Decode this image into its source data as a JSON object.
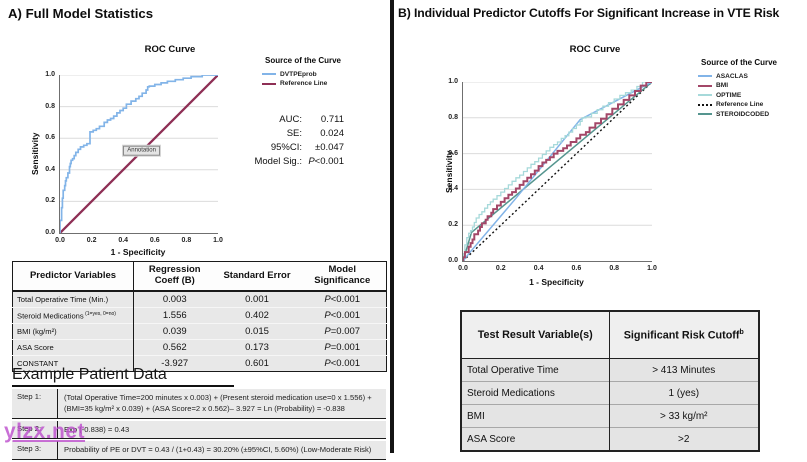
{
  "watermark": "ylzx.net",
  "panelA": {
    "title": "A) Full Model Statistics",
    "stats": [
      {
        "label": "AUC:",
        "value": "0.711"
      },
      {
        "label": "SE:",
        "value": "0.024"
      },
      {
        "label": "95%CI:",
        "value": "±0.047"
      },
      {
        "label": "Model Sig.:",
        "value": "P<0.001"
      }
    ],
    "table": {
      "headers": [
        "Predictor Variables",
        "Regression Coeff (B)",
        "Standard Error",
        "Model Significance"
      ],
      "rows": [
        {
          "label": "Total Operative Time (Min.)",
          "sup": "",
          "b": "0.003",
          "se": "0.001",
          "sig": "P<0.001"
        },
        {
          "label": "Steroid Medications",
          "sup": "(1=yes, 0=no)",
          "b": "1.556",
          "se": "0.402",
          "sig": "P<0.001"
        },
        {
          "label": "BMI (kg/m²)",
          "sup": "",
          "b": "0.039",
          "se": "0.015",
          "sig": "P=0.007"
        },
        {
          "label": "ASA Score",
          "sup": "",
          "b": "0.562",
          "se": "0.173",
          "sig": "P=0.001"
        },
        {
          "label": "CONSTANT",
          "sup": "",
          "b": "-3.927",
          "se": "0.601",
          "sig": "P<0.001"
        }
      ]
    },
    "example": {
      "heading": "Example Patient Data",
      "steps": [
        {
          "label": "Step 1:",
          "text": "(Total Operative Time=200 minutes x 0.003) + (Present steroid medication use=0 x 1.556) + (BMI=35 kg/m² x 0.039) + (ASA Score=2 x 0.562)– 3.927 = Ln (Probability) = -0.838"
        },
        {
          "label": "Step 2:",
          "text": "Exp (-0.838) = 0.43"
        },
        {
          "label": "Step 3:",
          "text": "Probability of PE or DVT = 0.43 / (1+0.43) = 30.20% (±95%CI, 5.60%) (Low-Moderate Risk)"
        }
      ]
    }
  },
  "panelB": {
    "title": "B) Individual Predictor Cutoffs For Significant Increase in VTE Risk",
    "table": {
      "headers": [
        {
          "text": "Test Result Variable(s)",
          "sup": ""
        },
        {
          "text": "Significant Risk Cutoff",
          "sup": "b"
        }
      ],
      "rows": [
        [
          "Total Operative Time",
          "> 413 Minutes"
        ],
        [
          "Steroid Medications",
          "1 (yes)"
        ],
        [
          "BMI",
          "> 33 kg/m²"
        ],
        [
          "ASA Score",
          ">2"
        ]
      ]
    }
  },
  "chart_data": [
    {
      "type": "line",
      "title": "ROC Curve",
      "xlabel": "1 - Specificity",
      "ylabel": "Sensitivity",
      "xlim": [
        0,
        1
      ],
      "ylim": [
        0,
        1
      ],
      "xticks": [
        "0.0",
        "0.2",
        "0.4",
        "0.6",
        "0.8",
        "1.0"
      ],
      "yticks": [
        "1.0",
        "0.8",
        "0.6",
        "0.4",
        "0.2",
        "0.0"
      ],
      "grid": "horizontal-light",
      "legend_title": "Source of the Curve",
      "legend_position": "right",
      "annotation": {
        "label": "Annotation",
        "x": 0.47,
        "y": 0.52
      },
      "draw_order": [
        1,
        0
      ],
      "series": [
        {
          "name": "DVTPEprob",
          "color": "#82b4e8",
          "width": 1.7,
          "stair": true,
          "points": [
            [
              0,
              0
            ],
            [
              0.01,
              0.08
            ],
            [
              0.015,
              0.16
            ],
            [
              0.02,
              0.22
            ],
            [
              0.03,
              0.27
            ],
            [
              0.035,
              0.3
            ],
            [
              0.04,
              0.33
            ],
            [
              0.05,
              0.35
            ],
            [
              0.06,
              0.38
            ],
            [
              0.065,
              0.42
            ],
            [
              0.07,
              0.44
            ],
            [
              0.08,
              0.46
            ],
            [
              0.09,
              0.47
            ],
            [
              0.1,
              0.49
            ],
            [
              0.115,
              0.51
            ],
            [
              0.13,
              0.53
            ],
            [
              0.15,
              0.545
            ],
            [
              0.17,
              0.555
            ],
            [
              0.19,
              0.565
            ],
            [
              0.19,
              0.625
            ],
            [
              0.21,
              0.64
            ],
            [
              0.23,
              0.65
            ],
            [
              0.25,
              0.66
            ],
            [
              0.28,
              0.675
            ],
            [
              0.3,
              0.7
            ],
            [
              0.32,
              0.715
            ],
            [
              0.34,
              0.725
            ],
            [
              0.36,
              0.74
            ],
            [
              0.38,
              0.76
            ],
            [
              0.4,
              0.775
            ],
            [
              0.42,
              0.79
            ],
            [
              0.45,
              0.815
            ],
            [
              0.48,
              0.835
            ],
            [
              0.5,
              0.85
            ],
            [
              0.52,
              0.865
            ],
            [
              0.545,
              0.885
            ],
            [
              0.555,
              0.905
            ],
            [
              0.565,
              0.925
            ],
            [
              0.6,
              0.93
            ],
            [
              0.64,
              0.94
            ],
            [
              0.68,
              0.95
            ],
            [
              0.73,
              0.96
            ],
            [
              0.78,
              0.97
            ],
            [
              0.83,
              0.98
            ],
            [
              0.9,
              0.99
            ],
            [
              1,
              1
            ]
          ]
        },
        {
          "name": "Reference Line",
          "color": "#8e2f55",
          "width": 2.3,
          "points": [
            [
              0,
              0
            ],
            [
              1,
              1
            ]
          ]
        }
      ]
    },
    {
      "type": "line",
      "title": "ROC Curve",
      "xlabel": "1 - Specificity",
      "ylabel": "Sensitivity",
      "xlim": [
        0,
        1
      ],
      "ylim": [
        0,
        1
      ],
      "xticks": [
        "0.0",
        "0.2",
        "0.4",
        "0.6",
        "0.8",
        "1.0"
      ],
      "yticks": [
        "1.0",
        "0.8",
        "0.6",
        "0.4",
        "0.2",
        "0.0"
      ],
      "grid": "horizontal-light",
      "legend_title": "Source of the Curve",
      "legend_position": "right",
      "draw_order": [
        3,
        4,
        0,
        2,
        1
      ],
      "series": [
        {
          "name": "ASACLAS",
          "color": "#82b4e8",
          "width": 1.5,
          "points": [
            [
              0,
              0
            ],
            [
              0.03,
              0.04
            ],
            [
              0.28,
              0.35
            ],
            [
              0.62,
              0.79
            ],
            [
              1,
              1
            ]
          ]
        },
        {
          "name": "BMI",
          "color": "#a34768",
          "width": 2.0,
          "stair": true,
          "points": [
            [
              0,
              0
            ],
            [
              0.01,
              0.02
            ],
            [
              0.03,
              0.05
            ],
            [
              0.04,
              0.08
            ],
            [
              0.05,
              0.1
            ],
            [
              0.06,
              0.12
            ],
            [
              0.08,
              0.15
            ],
            [
              0.09,
              0.17
            ],
            [
              0.1,
              0.19
            ],
            [
              0.12,
              0.21
            ],
            [
              0.13,
              0.23
            ],
            [
              0.15,
              0.25
            ],
            [
              0.16,
              0.27
            ],
            [
              0.18,
              0.29
            ],
            [
              0.2,
              0.31
            ],
            [
              0.22,
              0.33
            ],
            [
              0.24,
              0.35
            ],
            [
              0.26,
              0.37
            ],
            [
              0.28,
              0.385
            ],
            [
              0.3,
              0.405
            ],
            [
              0.32,
              0.425
            ],
            [
              0.34,
              0.445
            ],
            [
              0.36,
              0.465
            ],
            [
              0.38,
              0.485
            ],
            [
              0.4,
              0.505
            ],
            [
              0.42,
              0.53
            ],
            [
              0.44,
              0.55
            ],
            [
              0.46,
              0.565
            ],
            [
              0.48,
              0.58
            ],
            [
              0.5,
              0.6
            ],
            [
              0.53,
              0.615
            ],
            [
              0.55,
              0.63
            ],
            [
              0.57,
              0.645
            ],
            [
              0.6,
              0.665
            ],
            [
              0.62,
              0.685
            ],
            [
              0.65,
              0.705
            ],
            [
              0.67,
              0.72
            ],
            [
              0.7,
              0.745
            ],
            [
              0.73,
              0.77
            ],
            [
              0.76,
              0.795
            ],
            [
              0.79,
              0.82
            ],
            [
              0.82,
              0.85
            ],
            [
              0.85,
              0.875
            ],
            [
              0.88,
              0.9
            ],
            [
              0.91,
              0.925
            ],
            [
              0.94,
              0.95
            ],
            [
              0.97,
              0.98
            ],
            [
              1,
              1
            ]
          ]
        },
        {
          "name": "OPTIME",
          "color": "#a6d9da",
          "width": 1.3,
          "stair": true,
          "points": [
            [
              0,
              0
            ],
            [
              0.01,
              0.04
            ],
            [
              0.02,
              0.09
            ],
            [
              0.03,
              0.13
            ],
            [
              0.04,
              0.155
            ],
            [
              0.05,
              0.17
            ],
            [
              0.06,
              0.19
            ],
            [
              0.07,
              0.215
            ],
            [
              0.085,
              0.24
            ],
            [
              0.1,
              0.26
            ],
            [
              0.115,
              0.275
            ],
            [
              0.13,
              0.295
            ],
            [
              0.145,
              0.315
            ],
            [
              0.16,
              0.33
            ],
            [
              0.18,
              0.345
            ],
            [
              0.2,
              0.365
            ],
            [
              0.22,
              0.385
            ],
            [
              0.24,
              0.405
            ],
            [
              0.26,
              0.425
            ],
            [
              0.28,
              0.445
            ],
            [
              0.3,
              0.465
            ],
            [
              0.32,
              0.48
            ],
            [
              0.34,
              0.5
            ],
            [
              0.36,
              0.52
            ],
            [
              0.38,
              0.54
            ],
            [
              0.4,
              0.555
            ],
            [
              0.42,
              0.575
            ],
            [
              0.44,
              0.595
            ],
            [
              0.46,
              0.615
            ],
            [
              0.48,
              0.635
            ],
            [
              0.5,
              0.65
            ],
            [
              0.52,
              0.665
            ],
            [
              0.54,
              0.685
            ],
            [
              0.56,
              0.7
            ],
            [
              0.58,
              0.72
            ],
            [
              0.6,
              0.74
            ],
            [
              0.62,
              0.76
            ],
            [
              0.63,
              0.78
            ],
            [
              0.65,
              0.8
            ],
            [
              0.68,
              0.805
            ],
            [
              0.71,
              0.825
            ],
            [
              0.74,
              0.845
            ],
            [
              0.77,
              0.865
            ],
            [
              0.8,
              0.885
            ],
            [
              0.83,
              0.905
            ],
            [
              0.86,
              0.925
            ],
            [
              0.89,
              0.94
            ],
            [
              0.92,
              0.955
            ],
            [
              0.95,
              0.975
            ],
            [
              1,
              1
            ]
          ]
        },
        {
          "name": "Reference Line",
          "color": "#111111",
          "width": 1.4,
          "dash": "2,2.5",
          "points": [
            [
              0,
              0
            ],
            [
              1,
              1
            ]
          ]
        },
        {
          "name": "STEROIDCODED",
          "color": "#55958f",
          "width": 1.5,
          "points": [
            [
              0,
              0
            ],
            [
              0.045,
              0.16
            ],
            [
              1,
              1
            ]
          ]
        }
      ]
    }
  ]
}
